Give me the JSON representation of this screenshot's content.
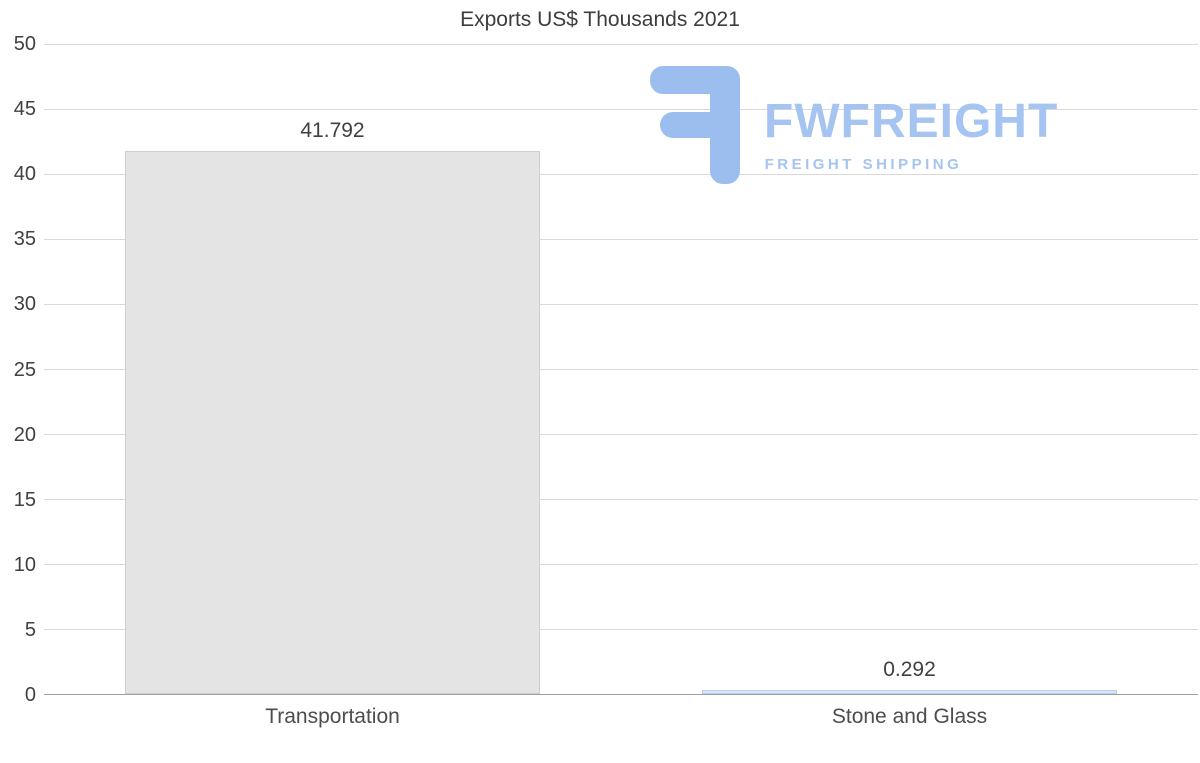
{
  "title": "Exports US$ Thousands 2021",
  "watermark": {
    "brand": "FWFREIGHT",
    "tagline": "FREIGHT SHIPPING",
    "color": "#a6c4f1"
  },
  "chart_data": {
    "type": "bar",
    "title": "Exports US$ Thousands 2021",
    "categories": [
      "Transportation",
      "Stone and Glass"
    ],
    "values": [
      41.792,
      0.292
    ],
    "data_labels": [
      "41.792",
      "0.292"
    ],
    "ylim": [
      0,
      50
    ],
    "yticks": [
      0,
      5,
      10,
      15,
      20,
      25,
      30,
      35,
      40,
      45,
      50
    ],
    "grid": true,
    "legend": "none",
    "bar_colors": [
      "#e4e4e4",
      "#dce7f6"
    ],
    "bar_border_colors": [
      "#cfcfcf",
      "#b7cdec"
    ]
  }
}
